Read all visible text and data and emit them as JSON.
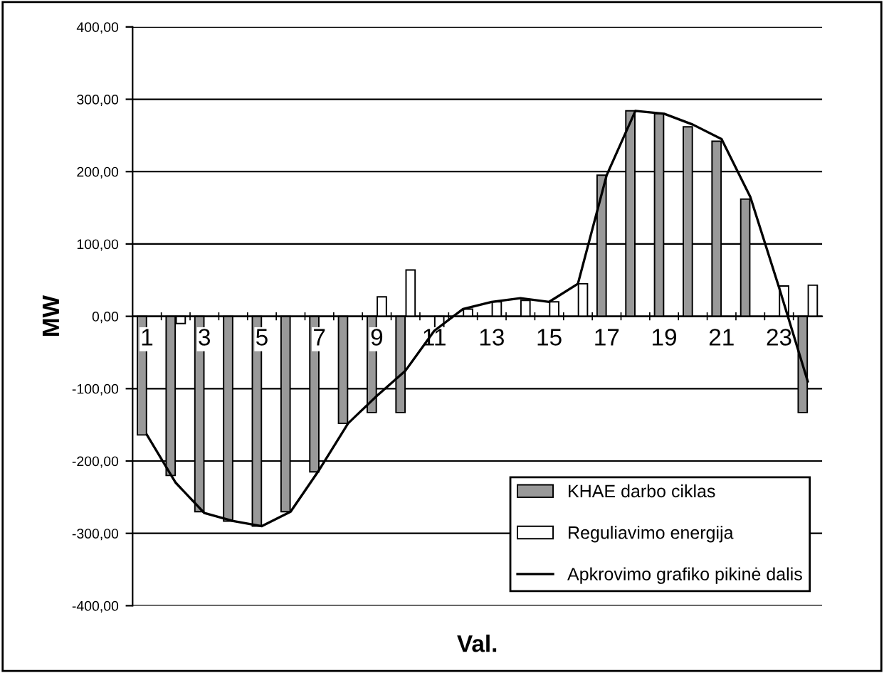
{
  "chart_data": {
    "type": "bar",
    "xlabel": "Val.",
    "ylabel": "MW",
    "categories": [
      "1",
      null,
      "3",
      null,
      "5",
      null,
      "7",
      null,
      "9",
      null,
      "11",
      null,
      "13",
      null,
      "15",
      null,
      "17",
      null,
      "19",
      null,
      "21",
      null,
      "23",
      null
    ],
    "series": [
      {
        "name": "KHAE darbo ciklas",
        "color": "#999999",
        "values": [
          -164,
          -220,
          -270,
          -283,
          -290,
          -270,
          -215,
          -148,
          -133,
          -133,
          null,
          null,
          null,
          null,
          null,
          null,
          195,
          284,
          280,
          262,
          242,
          162,
          null,
          -133
        ]
      },
      {
        "name": "Reguliavimo energija",
        "color": "#ffffff",
        "values": [
          null,
          -10,
          null,
          null,
          null,
          null,
          null,
          null,
          27,
          64,
          -17,
          10,
          20,
          22,
          20,
          45,
          null,
          null,
          null,
          null,
          null,
          null,
          42,
          43
        ]
      },
      {
        "name": "Apkrovimo grafiko pikinė dalis",
        "type": "line",
        "color": "#000000",
        "values": [
          -164,
          -230,
          -272,
          -283,
          -290,
          -270,
          -212,
          -148,
          -110,
          -75,
          -20,
          10,
          20,
          25,
          20,
          45,
          195,
          284,
          280,
          265,
          245,
          165,
          40,
          -90
        ]
      }
    ],
    "ylim": [
      -400,
      400
    ],
    "yticks": [
      {
        "value": -400,
        "label": "-400,00"
      },
      {
        "value": -300,
        "label": "-300,00"
      },
      {
        "value": -200,
        "label": "-200,00"
      },
      {
        "value": -100,
        "label": "-100,00"
      },
      {
        "value": 0,
        "label": "0,00"
      },
      {
        "value": 100,
        "label": "100,00"
      },
      {
        "value": 200,
        "label": "200,00"
      },
      {
        "value": 300,
        "label": "300,00"
      },
      {
        "value": 400,
        "label": "400,00"
      }
    ],
    "grid": "y",
    "legend": "bottom right",
    "marker": "none",
    "line_style": "solid"
  }
}
